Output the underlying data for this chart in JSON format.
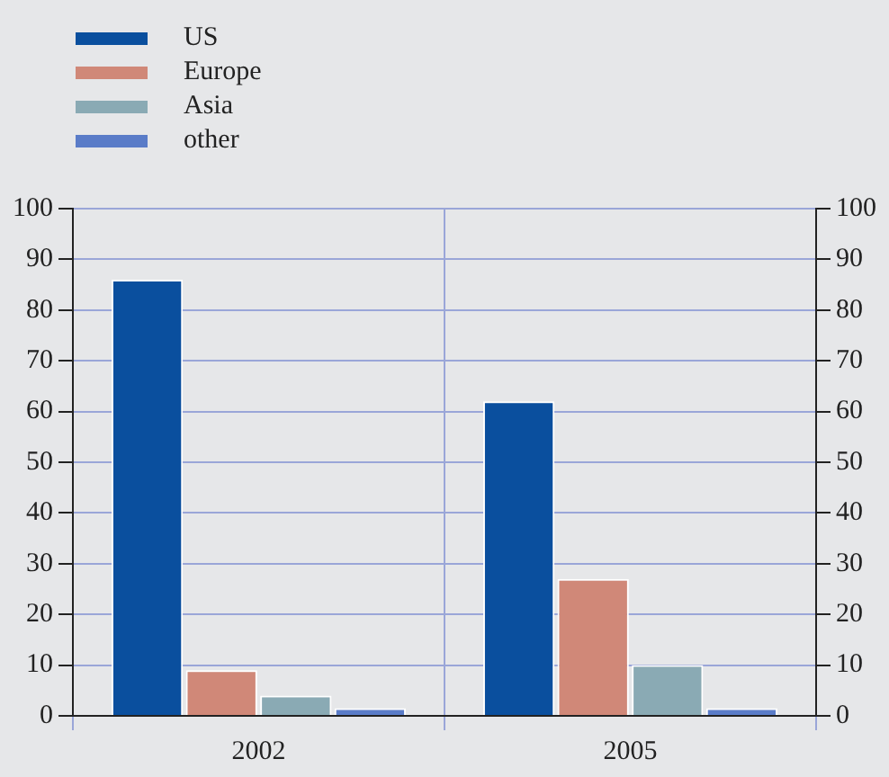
{
  "chart_data": {
    "type": "bar",
    "categories": [
      "2002",
      "2005"
    ],
    "series": [
      {
        "name": "US",
        "color": "#0a4f9e",
        "values": [
          86,
          62
        ]
      },
      {
        "name": "Europe",
        "color": "#d08878",
        "values": [
          9,
          27
        ]
      },
      {
        "name": "Asia",
        "color": "#8aaab4",
        "values": [
          4,
          10
        ]
      },
      {
        "name": "other",
        "color": "#5a7cc8",
        "values": [
          1.5,
          1.5
        ]
      }
    ],
    "ylim": [
      0,
      100
    ],
    "yticks": [
      0,
      10,
      20,
      30,
      40,
      50,
      60,
      70,
      80,
      90,
      100
    ],
    "y2lim": [
      0,
      100
    ],
    "y2ticks": [
      0,
      10,
      20,
      30,
      40,
      50,
      60,
      70,
      80,
      90,
      100
    ],
    "grid": true,
    "legend": "top left"
  }
}
